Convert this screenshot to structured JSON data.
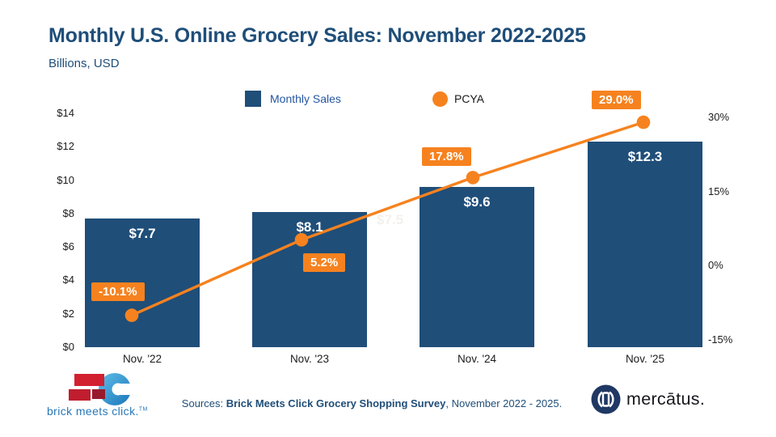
{
  "title": "Monthly U.S. Online Grocery Sales: November 2022-2025",
  "subtitle": "Billions, USD",
  "legend": {
    "monthly_sales": "Monthly Sales",
    "pcya": "PCYA"
  },
  "colors": {
    "bar": "#1F4E79",
    "accent_orange": "#F6821F",
    "title_navy": "#1F4E79"
  },
  "chart_data": {
    "type": "bar+line",
    "title": "Monthly U.S. Online Grocery Sales: November 2022-2025",
    "subtitle_units": "Billions, USD",
    "categories": [
      "Nov. '22",
      "Nov. '23",
      "Nov. '24",
      "Nov. '25"
    ],
    "series": [
      {
        "name": "Monthly Sales",
        "type": "bar",
        "axis": "left",
        "values": [
          7.7,
          8.1,
          9.6,
          12.3
        ],
        "labels": [
          "$7.7",
          "$8.1",
          "$9.6",
          "$12.3"
        ]
      },
      {
        "name": "PCYA",
        "type": "line",
        "axis": "right",
        "values": [
          -10.1,
          5.2,
          17.8,
          29.0
        ],
        "labels": [
          "-10.1%",
          "5.2%",
          "17.8%",
          "29.0%"
        ]
      }
    ],
    "left_axis": {
      "ticks": [
        "$14",
        "$12",
        "$10",
        "$8",
        "$6",
        "$4",
        "$2",
        "$0"
      ],
      "values": [
        14,
        12,
        10,
        8,
        6,
        4,
        2,
        0
      ],
      "range": [
        0,
        14
      ]
    },
    "right_axis": {
      "ticks": [
        "30%",
        "15%",
        "0%",
        "-15%"
      ],
      "values": [
        30,
        15,
        0,
        -15
      ],
      "range": [
        -15,
        30
      ]
    },
    "legend_position": "top",
    "grid": false,
    "ghost_label": "$7.5"
  },
  "footer": {
    "brick_logo_text": "brick meets click.",
    "brick_tm": "TM",
    "sources_prefix": "Sources: ",
    "sources_bold": "Brick Meets Click Grocery Shopping Survey",
    "sources_suffix": ", November 2022 - 2025.",
    "mercatus_text": "mercātus."
  }
}
